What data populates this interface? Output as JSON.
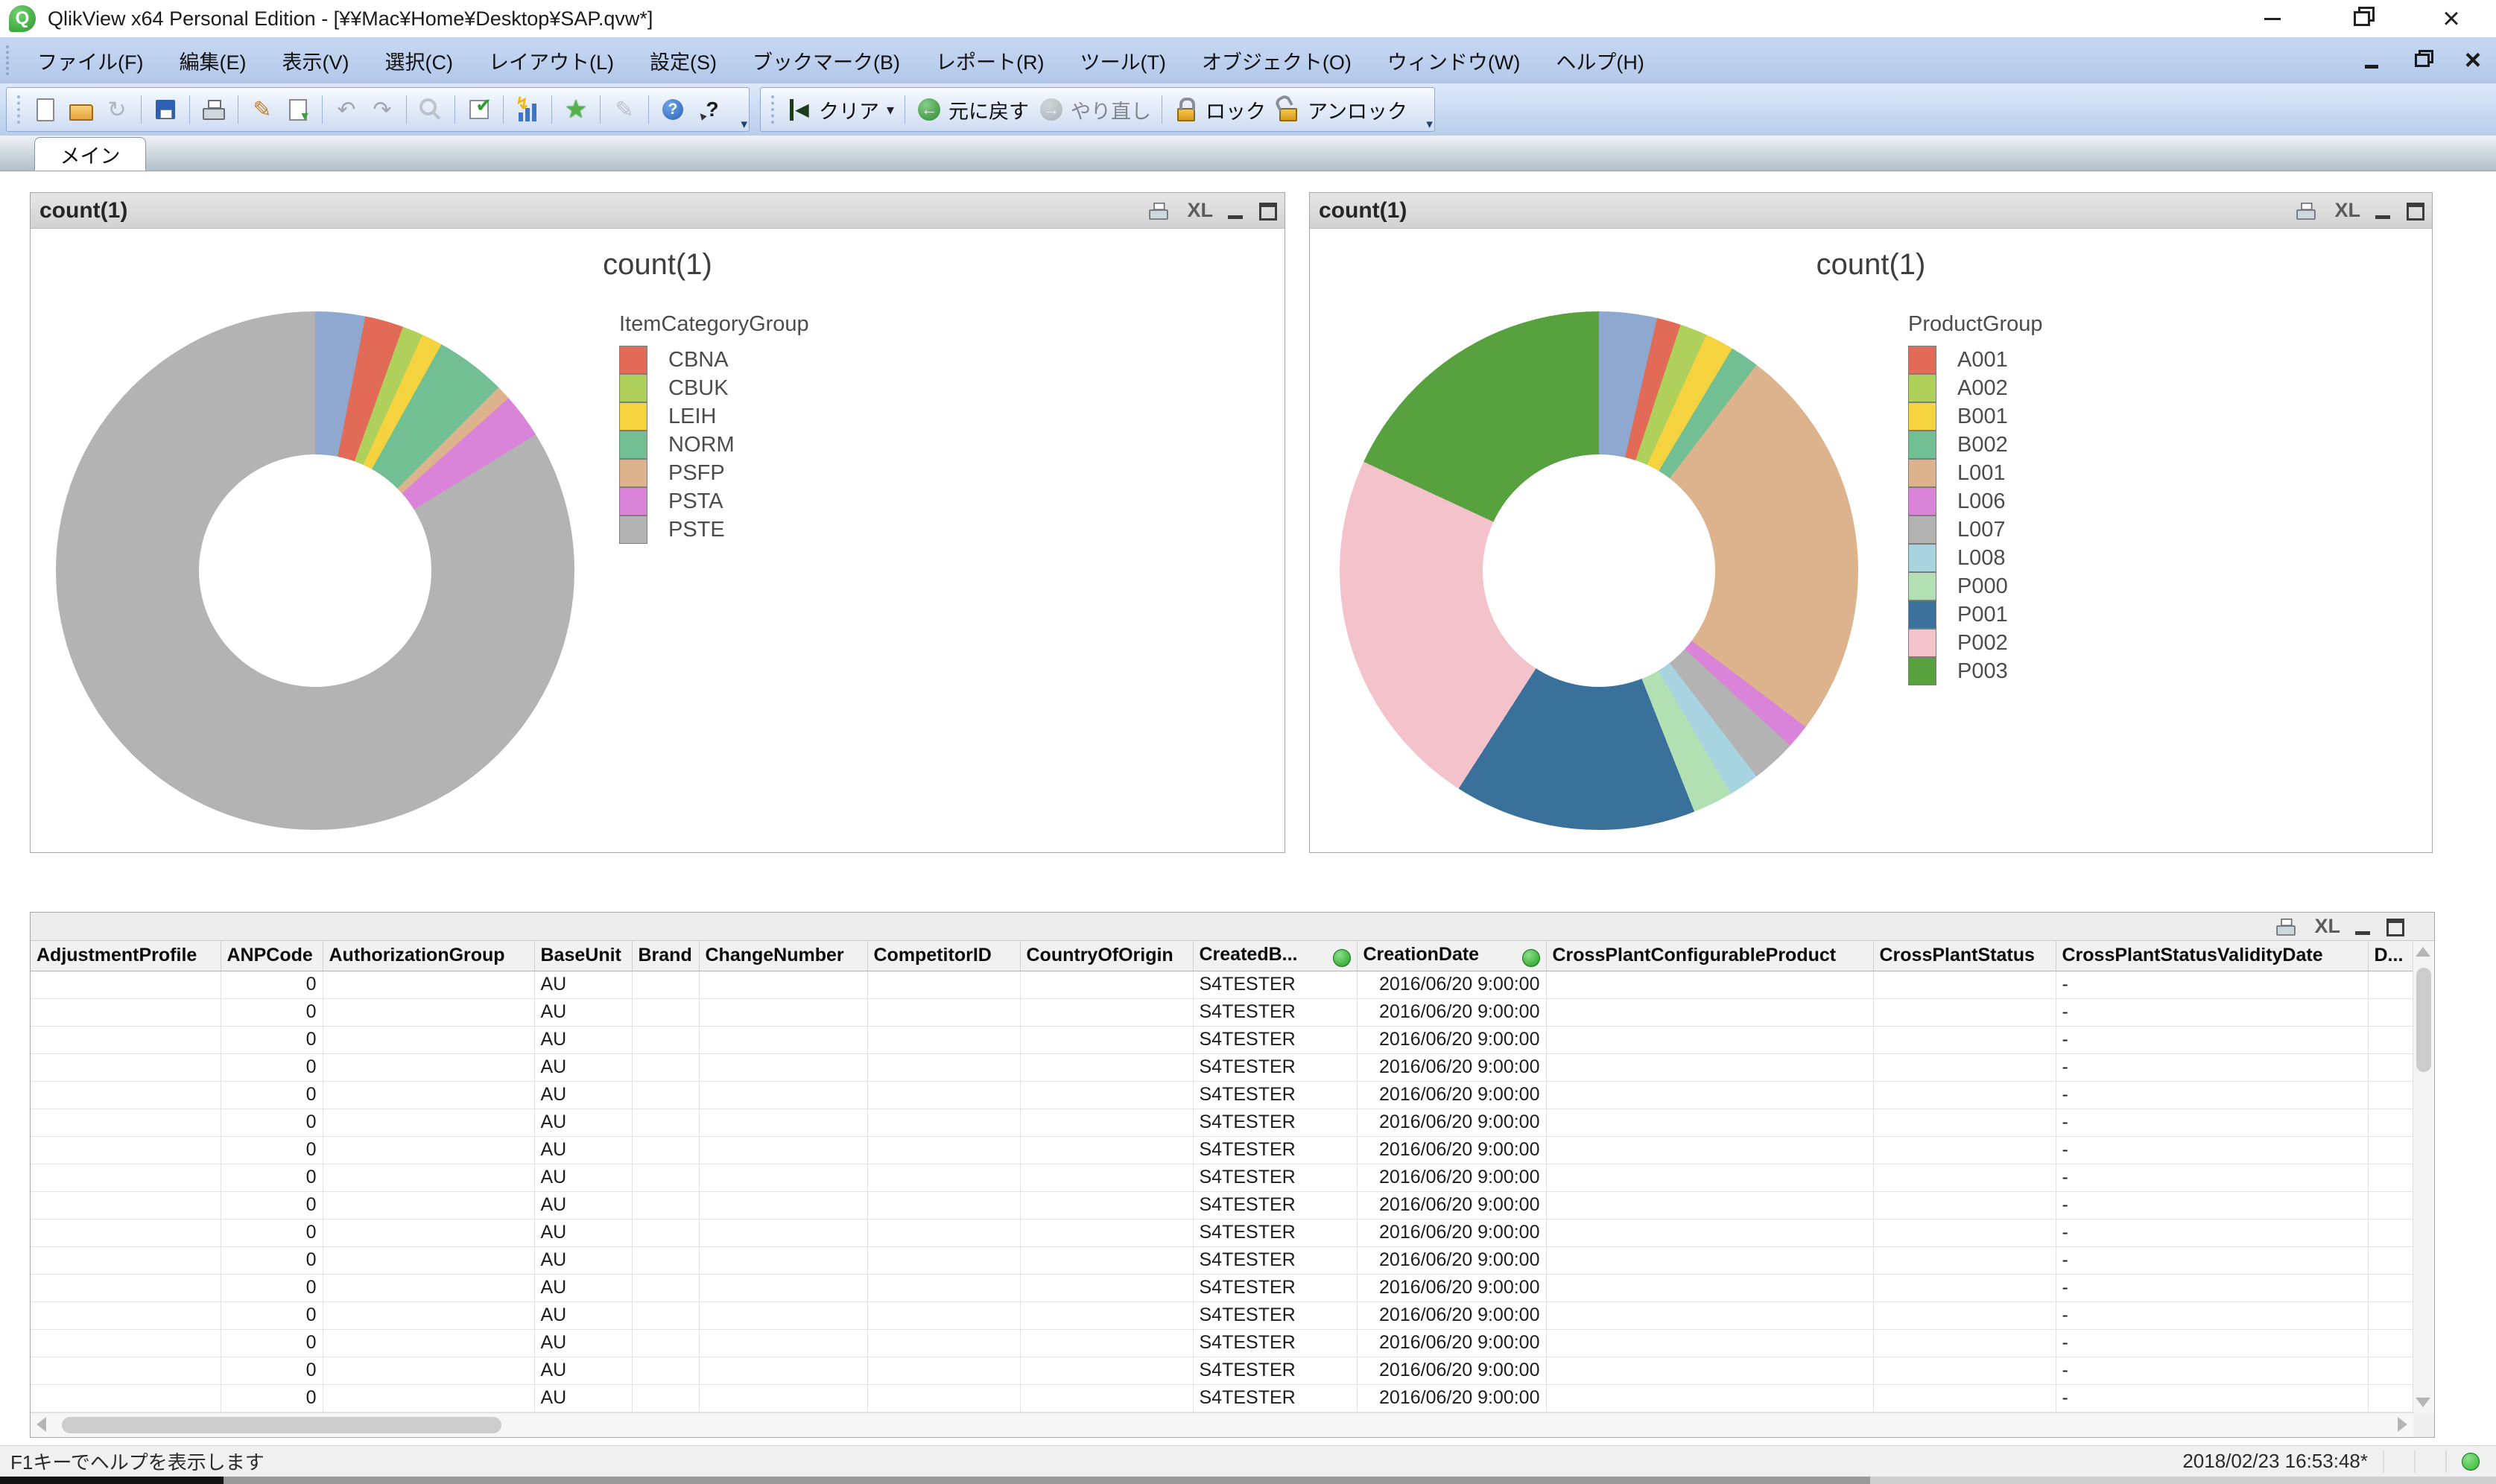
{
  "window": {
    "title": "QlikView x64 Personal Edition - [¥¥Mac¥Home¥Desktop¥SAP.qvw*]"
  },
  "menu": {
    "items": [
      "ファイル(F)",
      "編集(E)",
      "表示(V)",
      "選択(C)",
      "レイアウト(L)",
      "設定(S)",
      "ブックマーク(B)",
      "レポート(R)",
      "ツール(T)",
      "オブジェクト(O)",
      "ウィンドウ(W)",
      "ヘルプ(H)"
    ]
  },
  "toolbar": {
    "standard": [
      {
        "icon": "new-document-icon"
      },
      {
        "icon": "open-icon"
      },
      {
        "icon": "reload-icon",
        "disabled": true
      },
      {
        "sep": true
      },
      {
        "icon": "save-icon"
      },
      {
        "sep": true
      },
      {
        "icon": "print-icon"
      },
      {
        "sep": true
      },
      {
        "icon": "edit-properties-icon"
      },
      {
        "icon": "export-icon"
      },
      {
        "sep": true
      },
      {
        "icon": "undo-icon",
        "disabled": true
      },
      {
        "icon": "redo-icon",
        "disabled": true
      },
      {
        "sep": true
      },
      {
        "icon": "zoom-icon",
        "disabled": true
      },
      {
        "sep": true
      },
      {
        "icon": "select-check-icon"
      },
      {
        "sep": true
      },
      {
        "icon": "quick-chart-icon"
      },
      {
        "sep": true
      },
      {
        "icon": "favorites-star-icon"
      },
      {
        "sep": true
      },
      {
        "icon": "edit-module-icon",
        "disabled": true
      },
      {
        "sep": true
      },
      {
        "icon": "help-icon"
      },
      {
        "icon": "whats-this-icon"
      }
    ],
    "actions": [
      {
        "icon": "clear-icon",
        "label": "クリア",
        "dropdown": true
      },
      {
        "sep": true
      },
      {
        "icon": "step-back-icon",
        "label": "元に戻す"
      },
      {
        "icon": "step-forward-icon",
        "label": "やり直し",
        "disabled": true
      },
      {
        "sep": true
      },
      {
        "icon": "lock-icon",
        "label": "ロック"
      },
      {
        "icon": "unlock-icon",
        "label": "アンロック"
      }
    ]
  },
  "tabs": {
    "active": "メイン"
  },
  "ui": {
    "xl_label": "XL"
  },
  "charts": [
    {
      "caption": "count(1)",
      "chart_data": {
        "type": "pie",
        "title": "count(1)",
        "legend_title": "ItemCategoryGroup",
        "legend_position": "right",
        "slices": [
          {
            "label": "",
            "color": "#8fa8d0",
            "pct": 3.1
          },
          {
            "label": "CBNA",
            "color": "#e16b57",
            "pct": 2.4
          },
          {
            "label": "CBUK",
            "color": "#afd05a",
            "pct": 1.3
          },
          {
            "label": "LEIH",
            "color": "#f4d33f",
            "pct": 1.3
          },
          {
            "label": "NORM",
            "color": "#71bf92",
            "pct": 4.4
          },
          {
            "label": "PSFP",
            "color": "#dcb38c",
            "pct": 0.9
          },
          {
            "label": "PSTA",
            "color": "#d983d9",
            "pct": 2.8
          },
          {
            "label": "PSTE",
            "color": "#b3b3b3",
            "pct": 83.8
          }
        ]
      }
    },
    {
      "caption": "count(1)",
      "chart_data": {
        "type": "pie",
        "title": "count(1)",
        "legend_title": "ProductGroup",
        "legend_position": "right",
        "slices": [
          {
            "label": "",
            "color": "#8fa8d0",
            "pct": 3.6
          },
          {
            "label": "A001",
            "color": "#e16b57",
            "pct": 1.5
          },
          {
            "label": "A002",
            "color": "#afd05a",
            "pct": 1.7
          },
          {
            "label": "B001",
            "color": "#f4d33f",
            "pct": 1.8
          },
          {
            "label": "B002",
            "color": "#71bf92",
            "pct": 1.8
          },
          {
            "label": "L001",
            "color": "#dcb38c",
            "pct": 24.9
          },
          {
            "label": "L006",
            "color": "#d983d9",
            "pct": 1.5
          },
          {
            "label": "L007",
            "color": "#b3b3b3",
            "pct": 2.8
          },
          {
            "label": "L008",
            "color": "#a8d4e0",
            "pct": 1.9
          },
          {
            "label": "P000",
            "color": "#b2e0b2",
            "pct": 2.5
          },
          {
            "label": "P001",
            "color": "#39719b",
            "pct": 15.1
          },
          {
            "label": "P002",
            "color": "#f4c2ca",
            "pct": 22.8
          },
          {
            "label": "P003",
            "color": "#57a23e",
            "pct": 18.1
          }
        ]
      }
    }
  ],
  "table": {
    "headers": [
      {
        "label": "AdjustmentProfile"
      },
      {
        "label": "ANPCode",
        "align": "right"
      },
      {
        "label": "AuthorizationGroup"
      },
      {
        "label": "BaseUnit"
      },
      {
        "label": "Brand"
      },
      {
        "label": "ChangeNumber"
      },
      {
        "label": "CompetitorID"
      },
      {
        "label": "CountryOfOrigin"
      },
      {
        "label": "CreatedB...",
        "indicator": true
      },
      {
        "label": "CreationDate",
        "align": "right",
        "indicator": true
      },
      {
        "label": "CrossPlantConfigurableProduct"
      },
      {
        "label": "CrossPlantStatus"
      },
      {
        "label": "CrossPlantStatusValidityDate"
      },
      {
        "label": "D..."
      }
    ],
    "rows": [
      [
        "",
        "0",
        "",
        "AU",
        "",
        "",
        "",
        "",
        "S4TESTER",
        "2016/06/20 9:00:00",
        "",
        "",
        "-",
        ""
      ],
      [
        "",
        "0",
        "",
        "AU",
        "",
        "",
        "",
        "",
        "S4TESTER",
        "2016/06/20 9:00:00",
        "",
        "",
        "-",
        ""
      ],
      [
        "",
        "0",
        "",
        "AU",
        "",
        "",
        "",
        "",
        "S4TESTER",
        "2016/06/20 9:00:00",
        "",
        "",
        "-",
        ""
      ],
      [
        "",
        "0",
        "",
        "AU",
        "",
        "",
        "",
        "",
        "S4TESTER",
        "2016/06/20 9:00:00",
        "",
        "",
        "-",
        ""
      ],
      [
        "",
        "0",
        "",
        "AU",
        "",
        "",
        "",
        "",
        "S4TESTER",
        "2016/06/20 9:00:00",
        "",
        "",
        "-",
        ""
      ],
      [
        "",
        "0",
        "",
        "AU",
        "",
        "",
        "",
        "",
        "S4TESTER",
        "2016/06/20 9:00:00",
        "",
        "",
        "-",
        ""
      ],
      [
        "",
        "0",
        "",
        "AU",
        "",
        "",
        "",
        "",
        "S4TESTER",
        "2016/06/20 9:00:00",
        "",
        "",
        "-",
        ""
      ],
      [
        "",
        "0",
        "",
        "AU",
        "",
        "",
        "",
        "",
        "S4TESTER",
        "2016/06/20 9:00:00",
        "",
        "",
        "-",
        ""
      ],
      [
        "",
        "0",
        "",
        "AU",
        "",
        "",
        "",
        "",
        "S4TESTER",
        "2016/06/20 9:00:00",
        "",
        "",
        "-",
        ""
      ],
      [
        "",
        "0",
        "",
        "AU",
        "",
        "",
        "",
        "",
        "S4TESTER",
        "2016/06/20 9:00:00",
        "",
        "",
        "-",
        ""
      ],
      [
        "",
        "0",
        "",
        "AU",
        "",
        "",
        "",
        "",
        "S4TESTER",
        "2016/06/20 9:00:00",
        "",
        "",
        "-",
        ""
      ],
      [
        "",
        "0",
        "",
        "AU",
        "",
        "",
        "",
        "",
        "S4TESTER",
        "2016/06/20 9:00:00",
        "",
        "",
        "-",
        ""
      ],
      [
        "",
        "0",
        "",
        "AU",
        "",
        "",
        "",
        "",
        "S4TESTER",
        "2016/06/20 9:00:00",
        "",
        "",
        "-",
        ""
      ],
      [
        "",
        "0",
        "",
        "AU",
        "",
        "",
        "",
        "",
        "S4TESTER",
        "2016/06/20 9:00:00",
        "",
        "",
        "-",
        ""
      ],
      [
        "",
        "0",
        "",
        "AU",
        "",
        "",
        "",
        "",
        "S4TESTER",
        "2016/06/20 9:00:00",
        "",
        "",
        "-",
        ""
      ],
      [
        "",
        "0",
        "",
        "AU",
        "",
        "",
        "",
        "",
        "S4TESTER",
        "2016/06/20 9:00:00",
        "",
        "",
        "-",
        ""
      ]
    ]
  },
  "statusbar": {
    "help_text": "F1キーでヘルプを表示します",
    "timestamp": "2018/02/23 16:53:48*",
    "indicator_color": "#2eb82e"
  }
}
